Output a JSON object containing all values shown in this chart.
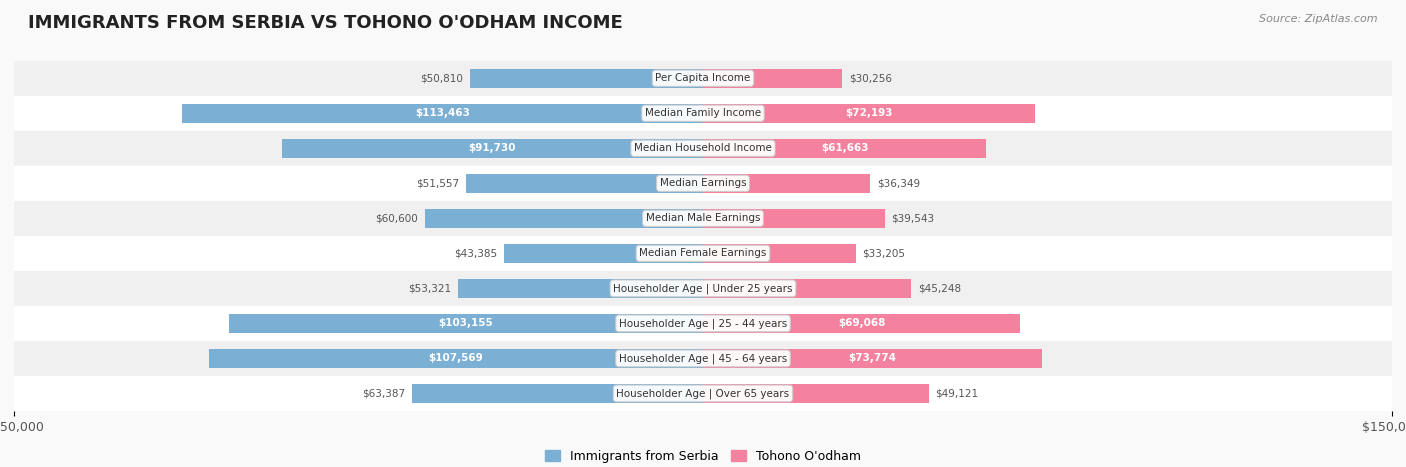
{
  "title": "IMMIGRANTS FROM SERBIA VS TOHONO O'ODHAM INCOME",
  "source": "Source: ZipAtlas.com",
  "categories": [
    "Per Capita Income",
    "Median Family Income",
    "Median Household Income",
    "Median Earnings",
    "Median Male Earnings",
    "Median Female Earnings",
    "Householder Age | Under 25 years",
    "Householder Age | 25 - 44 years",
    "Householder Age | 45 - 64 years",
    "Householder Age | Over 65 years"
  ],
  "serbia_values": [
    50810,
    113463,
    91730,
    51557,
    60600,
    43385,
    53321,
    103155,
    107569,
    63387
  ],
  "tohono_values": [
    30256,
    72193,
    61663,
    36349,
    39543,
    33205,
    45248,
    69068,
    73774,
    49121
  ],
  "serbia_labels": [
    "$50,810",
    "$113,463",
    "$91,730",
    "$51,557",
    "$60,600",
    "$43,385",
    "$53,321",
    "$103,155",
    "$107,569",
    "$63,387"
  ],
  "tohono_labels": [
    "$30,256",
    "$72,193",
    "$61,663",
    "$36,349",
    "$39,543",
    "$33,205",
    "$45,248",
    "$69,068",
    "$73,774",
    "$49,121"
  ],
  "serbia_color": "#7bafd4",
  "tohono_color": "#f4829e",
  "serbia_color_dark": "#5b8fbf",
  "tohono_color_dark": "#e8607a",
  "max_value": 150000,
  "bar_height": 0.55,
  "bg_color": "#f5f5f5",
  "row_bg_color": "#f0f0f0",
  "row_alt_color": "#ffffff",
  "legend_serbia": "Immigrants from Serbia",
  "legend_tohono": "Tohono O'odham"
}
